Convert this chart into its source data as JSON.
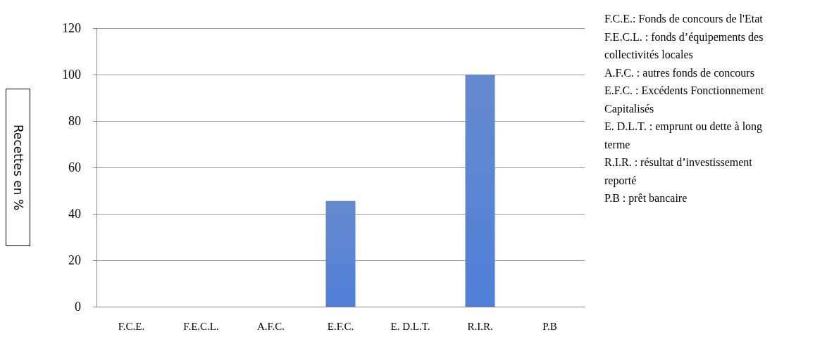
{
  "chart_data": {
    "type": "bar",
    "ylabel": "Recettes en %",
    "categories": [
      "F.C.E.",
      "F.E.C.L.",
      "A.F.C.",
      "E.F.C.",
      "E. D.L.T.",
      "R.I.R.",
      "P.B"
    ],
    "values": [
      0,
      0,
      0,
      45.5,
      0,
      100,
      0
    ],
    "color": "#4a75c6",
    "ylim": [
      0,
      120
    ],
    "yticks": [
      0,
      20,
      40,
      60,
      80,
      100,
      120
    ],
    "grid": "y",
    "annotations": [
      "F.C.E.: Fonds de concours de l'Etat",
      "F.E.C.L. : fonds d’équipements des collectivités locales",
      "A.F.C. : autres fonds de concours",
      "E.F.C. : Excédents Fonctionnement Capitalisés",
      "E. D.L.T. : emprunt ou dette à long terme",
      "R.I.R. : résultat d’investissement reporté",
      "P.B : prêt bancaire"
    ]
  }
}
